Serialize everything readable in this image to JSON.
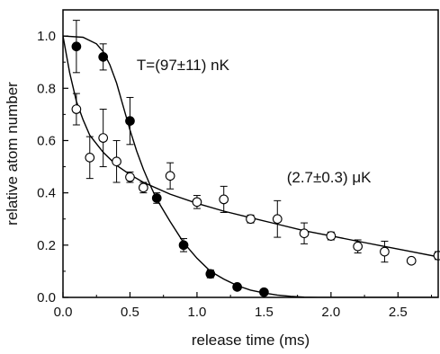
{
  "chart_data": {
    "type": "scatter",
    "title": "",
    "xlabel": "release time (ms)",
    "ylabel": "relative atom number",
    "xlim": [
      0.0,
      2.8
    ],
    "ylim": [
      0.0,
      1.1
    ],
    "xticks": [
      "0.0",
      "0.5",
      "1.0",
      "1.5",
      "2.0",
      "2.5"
    ],
    "xtick_values": [
      0.0,
      0.5,
      1.0,
      1.5,
      2.0,
      2.5
    ],
    "yticks": [
      "0.0",
      "0.2",
      "0.4",
      "0.6",
      "0.8",
      "1.0"
    ],
    "ytick_values": [
      0.0,
      0.2,
      0.4,
      0.6,
      0.8,
      1.0
    ],
    "grid": false,
    "annotations": [
      {
        "text": "T=(97±11) nK",
        "x": 0.55,
        "y": 0.87
      },
      {
        "text": "(2.7±0.3) μK",
        "x": 1.67,
        "y": 0.44
      }
    ],
    "series": [
      {
        "marker": "filled-circle",
        "color": "#000000",
        "points": [
          {
            "x": 0.1,
            "y": 0.96,
            "err": 0.1
          },
          {
            "x": 0.3,
            "y": 0.92,
            "err": 0.05
          },
          {
            "x": 0.5,
            "y": 0.675,
            "err": 0.09
          },
          {
            "x": 0.7,
            "y": 0.38,
            "err": 0.02
          },
          {
            "x": 0.9,
            "y": 0.2,
            "err": 0.025
          },
          {
            "x": 1.1,
            "y": 0.09,
            "err": 0.015
          },
          {
            "x": 1.3,
            "y": 0.04,
            "err": 0.01
          },
          {
            "x": 1.5,
            "y": 0.02,
            "err": 0.008
          }
        ],
        "fit_curve": [
          [
            0.0,
            1.0
          ],
          [
            0.15,
            0.995
          ],
          [
            0.25,
            0.97
          ],
          [
            0.3,
            0.94
          ],
          [
            0.35,
            0.89
          ],
          [
            0.4,
            0.82
          ],
          [
            0.45,
            0.73
          ],
          [
            0.5,
            0.64
          ],
          [
            0.55,
            0.56
          ],
          [
            0.6,
            0.49
          ],
          [
            0.65,
            0.43
          ],
          [
            0.7,
            0.375
          ],
          [
            0.8,
            0.29
          ],
          [
            0.9,
            0.21
          ],
          [
            1.0,
            0.15
          ],
          [
            1.1,
            0.1
          ],
          [
            1.2,
            0.07
          ],
          [
            1.3,
            0.045
          ],
          [
            1.4,
            0.028
          ],
          [
            1.5,
            0.017
          ],
          [
            1.6,
            0.009
          ],
          [
            1.7,
            0.004
          ],
          [
            1.8,
            0.001
          ],
          [
            1.9,
            0.0
          ],
          [
            2.8,
            0.0
          ]
        ]
      },
      {
        "marker": "open-circle",
        "color": "#000000",
        "points": [
          {
            "x": 0.1,
            "y": 0.72,
            "err": 0.06
          },
          {
            "x": 0.2,
            "y": 0.535,
            "err": 0.08
          },
          {
            "x": 0.3,
            "y": 0.61,
            "err": 0.11
          },
          {
            "x": 0.4,
            "y": 0.52,
            "err": 0.08
          },
          {
            "x": 0.5,
            "y": 0.46,
            "err": 0.02
          },
          {
            "x": 0.6,
            "y": 0.42,
            "err": 0.02
          },
          {
            "x": 0.8,
            "y": 0.465,
            "err": 0.05
          },
          {
            "x": 1.0,
            "y": 0.365,
            "err": 0.025
          },
          {
            "x": 1.2,
            "y": 0.375,
            "err": 0.05
          },
          {
            "x": 1.4,
            "y": 0.3,
            "err": 0.015
          },
          {
            "x": 1.6,
            "y": 0.3,
            "err": 0.07
          },
          {
            "x": 1.8,
            "y": 0.245,
            "err": 0.04
          },
          {
            "x": 2.0,
            "y": 0.235,
            "err": 0.015
          },
          {
            "x": 2.2,
            "y": 0.195,
            "err": 0.025
          },
          {
            "x": 2.4,
            "y": 0.175,
            "err": 0.04
          },
          {
            "x": 2.6,
            "y": 0.14,
            "err": 0.01
          },
          {
            "x": 2.8,
            "y": 0.16,
            "err": 0.015
          }
        ],
        "fit_curve": [
          [
            0.0,
            1.0
          ],
          [
            0.05,
            0.86
          ],
          [
            0.1,
            0.75
          ],
          [
            0.15,
            0.68
          ],
          [
            0.2,
            0.62
          ],
          [
            0.3,
            0.555
          ],
          [
            0.4,
            0.505
          ],
          [
            0.5,
            0.47
          ],
          [
            0.6,
            0.44
          ],
          [
            0.8,
            0.395
          ],
          [
            1.0,
            0.36
          ],
          [
            1.2,
            0.33
          ],
          [
            1.4,
            0.305
          ],
          [
            1.6,
            0.28
          ],
          [
            1.8,
            0.255
          ],
          [
            2.0,
            0.235
          ],
          [
            2.2,
            0.215
          ],
          [
            2.4,
            0.195
          ],
          [
            2.6,
            0.175
          ],
          [
            2.8,
            0.155
          ]
        ]
      }
    ]
  }
}
